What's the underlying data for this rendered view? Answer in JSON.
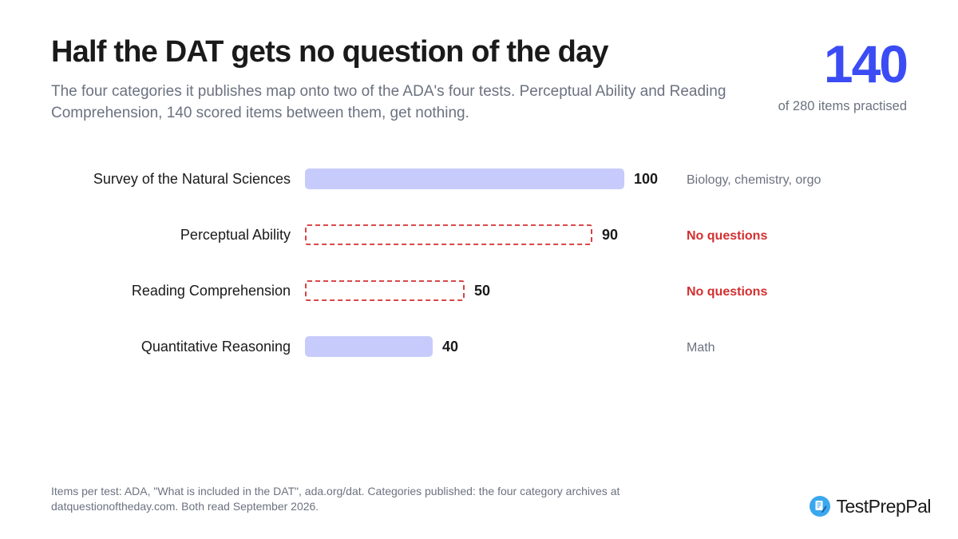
{
  "header": {
    "title": "Half the DAT gets no question of the day",
    "subtitle": "The four categories it publishes map onto two of the ADA's four tests. Perceptual Ability and Reading Comprehension, 140 scored items between them, get nothing."
  },
  "stat": {
    "value": "140",
    "caption": "of 280 items practised"
  },
  "chart_data": {
    "type": "bar",
    "orientation": "horizontal",
    "categories": [
      "Survey of the Natural Sciences",
      "Perceptual Ability",
      "Reading Comprehension",
      "Quantitative Reasoning"
    ],
    "values": [
      100,
      90,
      50,
      40
    ],
    "notes": [
      "Biology, chemistry, orgo",
      "No questions",
      "No questions",
      "Math"
    ],
    "covered": [
      true,
      false,
      false,
      true
    ],
    "xlim": [
      0,
      100
    ],
    "grid": false,
    "legend": "none",
    "colors": {
      "covered_fill": "#c7cbfb",
      "missing_stroke": "#d32f2f",
      "missing_note": "#d32f2f",
      "note": "#6b7280",
      "label": "#1a1a1a"
    }
  },
  "footer": {
    "source": "Items per test: ADA, \"What is included in the DAT\", ada.org/dat. Categories published: the four category archives at datquestionoftheday.com. Both read September 2026."
  },
  "brand": {
    "name": "TestPrepPal",
    "icon": "document-pencil-icon",
    "icon_color": "#3ba7ef"
  }
}
